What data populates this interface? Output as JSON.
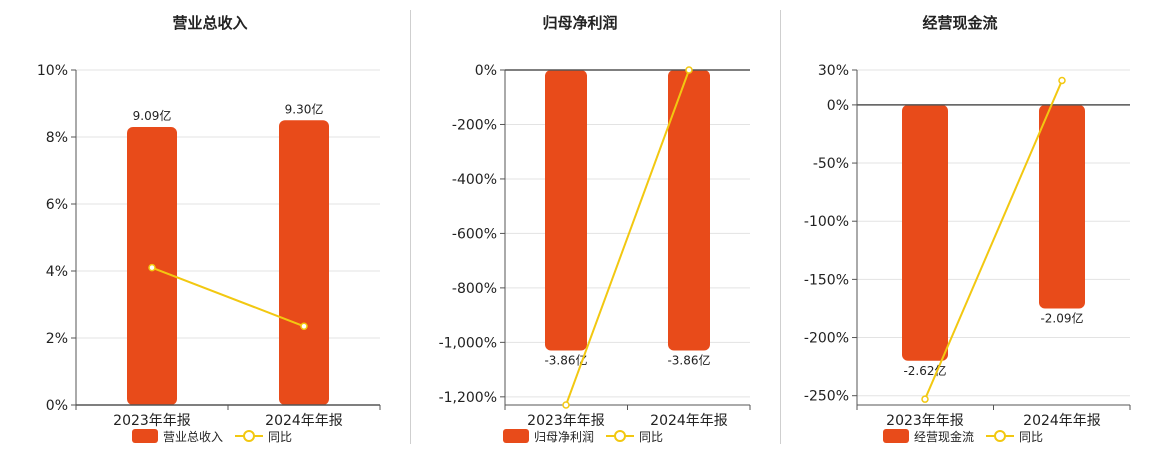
{
  "legend_line_label": "同比",
  "colors": {
    "bar": "#E84B1A",
    "line": "#F2C811",
    "grid": "#e3e3e3",
    "axis": "#555555",
    "text": "#222222"
  },
  "chart_data": [
    {
      "type": "bar",
      "title": "营业总收入",
      "categories": [
        "2023年年报",
        "2024年年报"
      ],
      "series": [
        {
          "name": "营业总收入",
          "values": [
            8.3,
            8.5
          ],
          "value_labels": [
            "9.09亿",
            "9.30亿"
          ]
        },
        {
          "name": "同比",
          "type": "line",
          "values": [
            4.1,
            2.35
          ]
        }
      ],
      "y_ticks": [
        "10%",
        "8%",
        "6%",
        "4%",
        "2%",
        "0%"
      ],
      "ylim": [
        0,
        10
      ],
      "grid": true,
      "legend": "bottom"
    },
    {
      "type": "bar",
      "title": "归母净利润",
      "categories": [
        "2023年年报",
        "2024年年报"
      ],
      "series": [
        {
          "name": "归母净利润",
          "values": [
            -1030,
            -1030
          ],
          "value_labels": [
            "-3.86亿",
            "-3.86亿"
          ]
        },
        {
          "name": "同比",
          "type": "line",
          "values": [
            -1230,
            0
          ]
        }
      ],
      "y_ticks": [
        "0%",
        "-200%",
        "-400%",
        "-600%",
        "-800%",
        "-1,000%",
        "-1,200%"
      ],
      "ylim": [
        -1230,
        0
      ],
      "grid": true,
      "legend": "bottom"
    },
    {
      "type": "bar",
      "title": "经营现金流",
      "categories": [
        "2023年年报",
        "2024年年报"
      ],
      "series": [
        {
          "name": "经营现金流",
          "values": [
            -220,
            -175
          ],
          "value_labels": [
            "-2.62亿",
            "-2.09亿"
          ]
        },
        {
          "name": "同比",
          "type": "line",
          "values": [
            -253,
            21
          ]
        }
      ],
      "y_ticks": [
        "30%",
        "0%",
        "-50%",
        "-100%",
        "-150%",
        "-200%",
        "-250%"
      ],
      "ylim": [
        -258,
        30
      ],
      "grid": true,
      "legend": "bottom"
    }
  ]
}
